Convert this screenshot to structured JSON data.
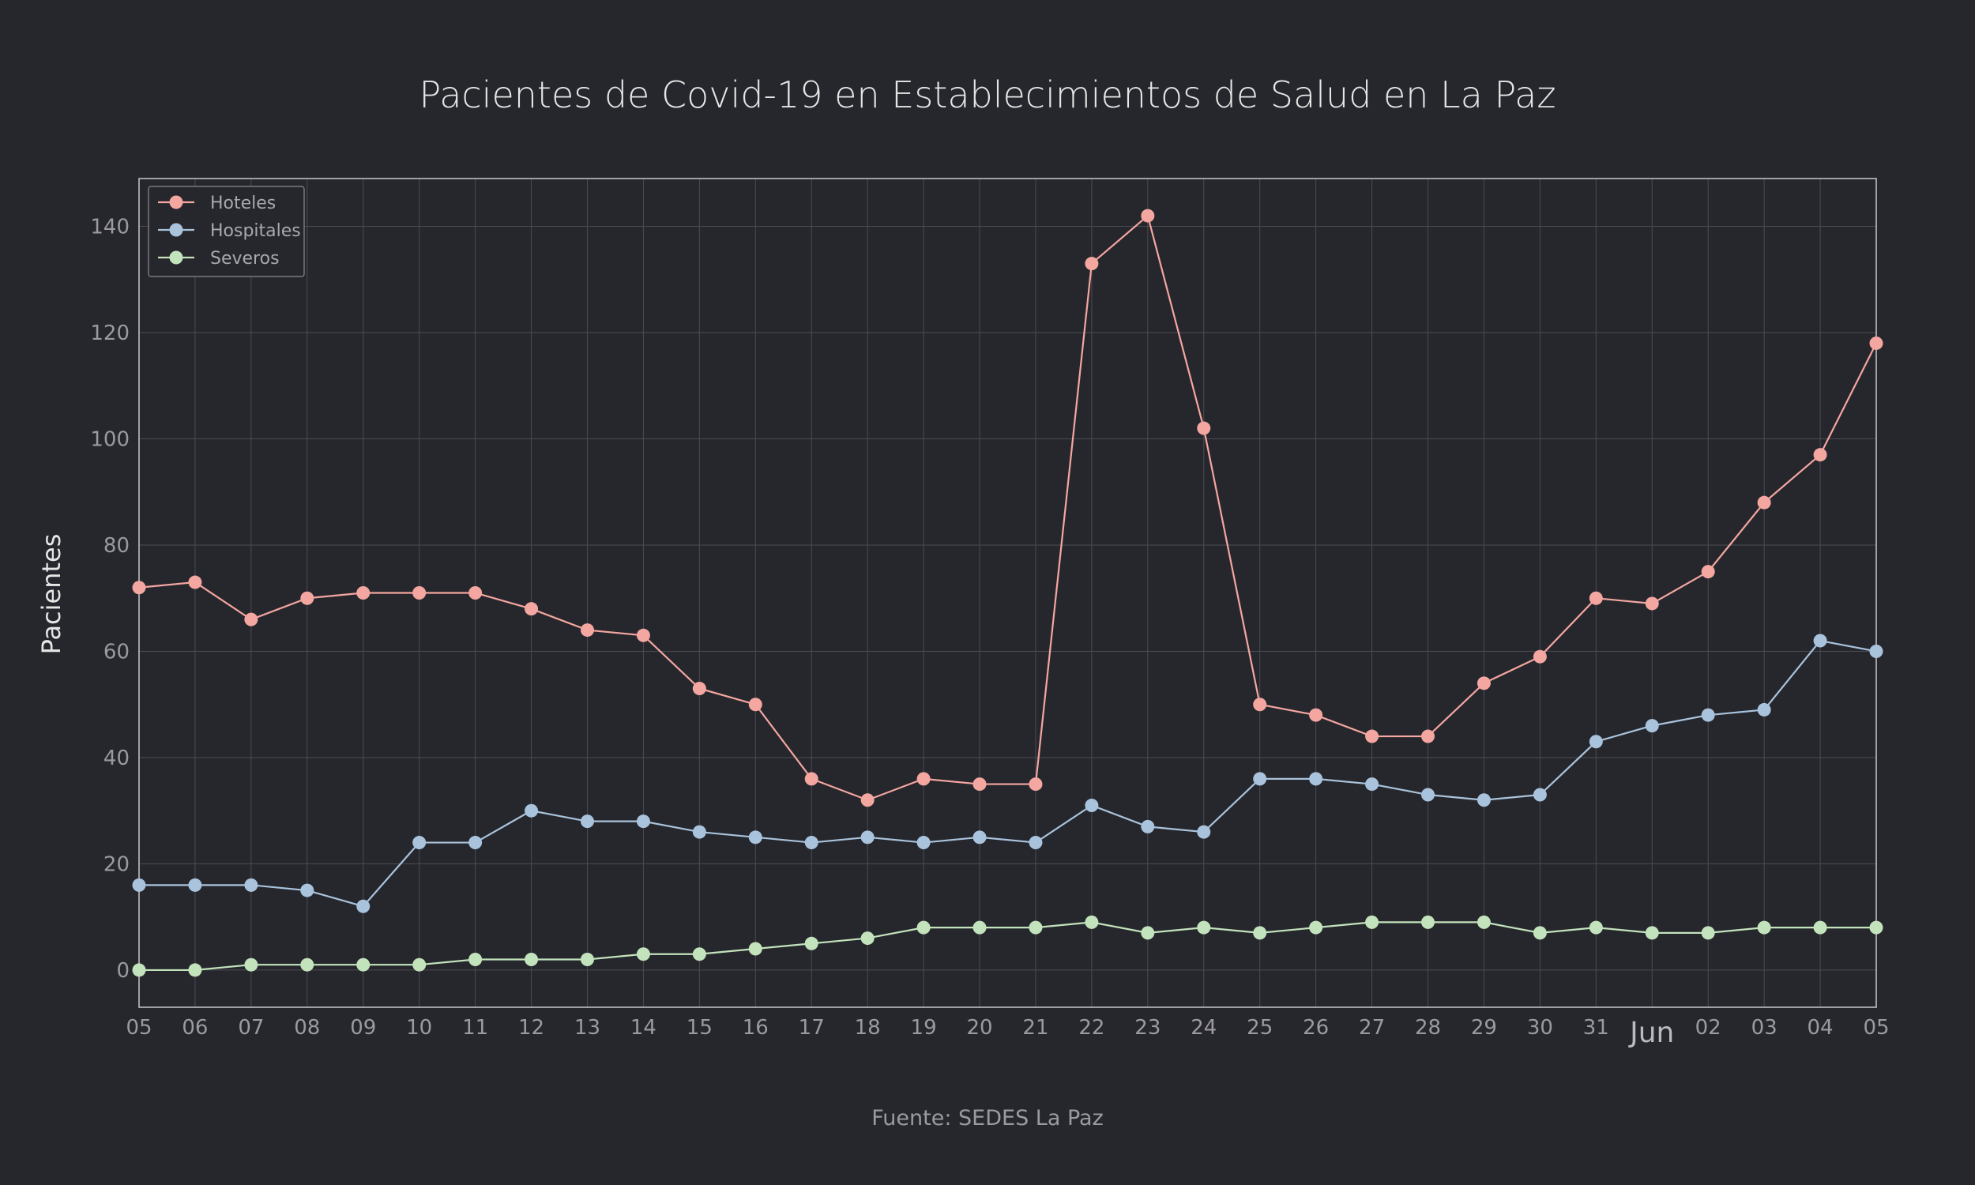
{
  "chart_data": {
    "type": "line",
    "title": "Pacientes de Covid-19 en Establecimientos de Salud en La Paz",
    "ylabel": "Pacientes",
    "source": "Fuente: SEDES La Paz",
    "x_tick_labels": [
      "05",
      "06",
      "07",
      "08",
      "09",
      "10",
      "11",
      "12",
      "13",
      "14",
      "15",
      "16",
      "17",
      "18",
      "19",
      "20",
      "21",
      "22",
      "23",
      "24",
      "25",
      "26",
      "27",
      "28",
      "29",
      "30",
      "31",
      "",
      "02",
      "03",
      "04",
      "05"
    ],
    "month_label": "Jun",
    "ylim": [
      -7,
      149
    ],
    "yticks": [
      0,
      20,
      40,
      60,
      80,
      100,
      120,
      140
    ],
    "grid": true,
    "legend_position": "top-left",
    "series": [
      {
        "name": "Hoteles",
        "color": "#f4a6a0",
        "values": [
          72,
          73,
          66,
          70,
          71,
          71,
          71,
          68,
          64,
          63,
          53,
          50,
          36,
          32,
          36,
          35,
          35,
          133,
          142,
          102,
          50,
          48,
          44,
          44,
          54,
          59,
          70,
          69,
          75,
          88,
          97,
          118
        ]
      },
      {
        "name": "Hospitales",
        "color": "#a9c3dc",
        "values": [
          16,
          16,
          16,
          15,
          12,
          24,
          24,
          30,
          28,
          28,
          26,
          25,
          24,
          25,
          24,
          25,
          24,
          31,
          27,
          26,
          36,
          36,
          35,
          33,
          32,
          33,
          43,
          46,
          48,
          49,
          62,
          60
        ]
      },
      {
        "name": "Severos",
        "color": "#c3e3bc",
        "values": [
          0,
          0,
          1,
          1,
          1,
          1,
          2,
          2,
          2,
          3,
          3,
          4,
          5,
          6,
          8,
          8,
          8,
          9,
          7,
          8,
          7,
          8,
          9,
          9,
          9,
          7,
          8,
          7,
          7,
          8,
          8,
          8
        ]
      }
    ]
  }
}
